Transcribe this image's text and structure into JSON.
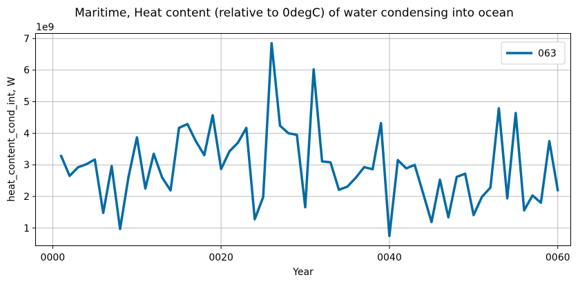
{
  "chart_data": {
    "type": "line",
    "title": "Maritime, Heat content (relative to 0degC) of water condensing into ocean",
    "xlabel": "Year",
    "ylabel": "heat_content_cond_int, W",
    "offset_text": "1e9",
    "xlim": [
      -2,
      61.5
    ],
    "ylim": [
      0.45,
      7.15
    ],
    "grid": true,
    "legend_position": "top-right",
    "x_ticks": [
      0,
      20,
      40,
      60
    ],
    "x_tick_labels": [
      "0000",
      "0020",
      "0040",
      "0060"
    ],
    "y_ticks": [
      1,
      2,
      3,
      4,
      5,
      6,
      7
    ],
    "y_tick_labels": [
      "1",
      "2",
      "3",
      "4",
      "5",
      "6",
      "7"
    ],
    "color": "#006ba4",
    "series": [
      {
        "name": "063",
        "x": [
          1,
          2,
          3,
          4,
          5,
          6,
          7,
          8,
          9,
          10,
          11,
          12,
          13,
          14,
          15,
          16,
          17,
          18,
          19,
          20,
          21,
          22,
          23,
          24,
          25,
          26,
          27,
          28,
          29,
          30,
          31,
          32,
          33,
          34,
          35,
          36,
          37,
          38,
          39,
          40,
          41,
          42,
          43,
          44,
          45,
          46,
          47,
          48,
          49,
          50,
          51,
          52,
          53,
          54,
          55,
          56,
          57,
          58,
          59,
          60
        ],
        "values": [
          3.28,
          2.65,
          2.92,
          3.02,
          3.17,
          1.48,
          2.96,
          0.97,
          2.62,
          3.87,
          2.25,
          3.35,
          2.6,
          2.19,
          4.17,
          4.29,
          3.75,
          3.31,
          4.57,
          2.87,
          3.43,
          3.7,
          4.17,
          1.28,
          1.98,
          6.85,
          4.24,
          4.0,
          3.95,
          1.66,
          6.02,
          3.11,
          3.08,
          2.21,
          2.31,
          2.59,
          2.93,
          2.86,
          4.32,
          0.75,
          3.15,
          2.89,
          3.0,
          2.1,
          1.19,
          2.53,
          1.34,
          2.62,
          2.72,
          1.41,
          1.99,
          2.28,
          4.79,
          1.94,
          4.64,
          1.56,
          2.03,
          1.8,
          3.75,
          2.2
        ]
      }
    ]
  }
}
